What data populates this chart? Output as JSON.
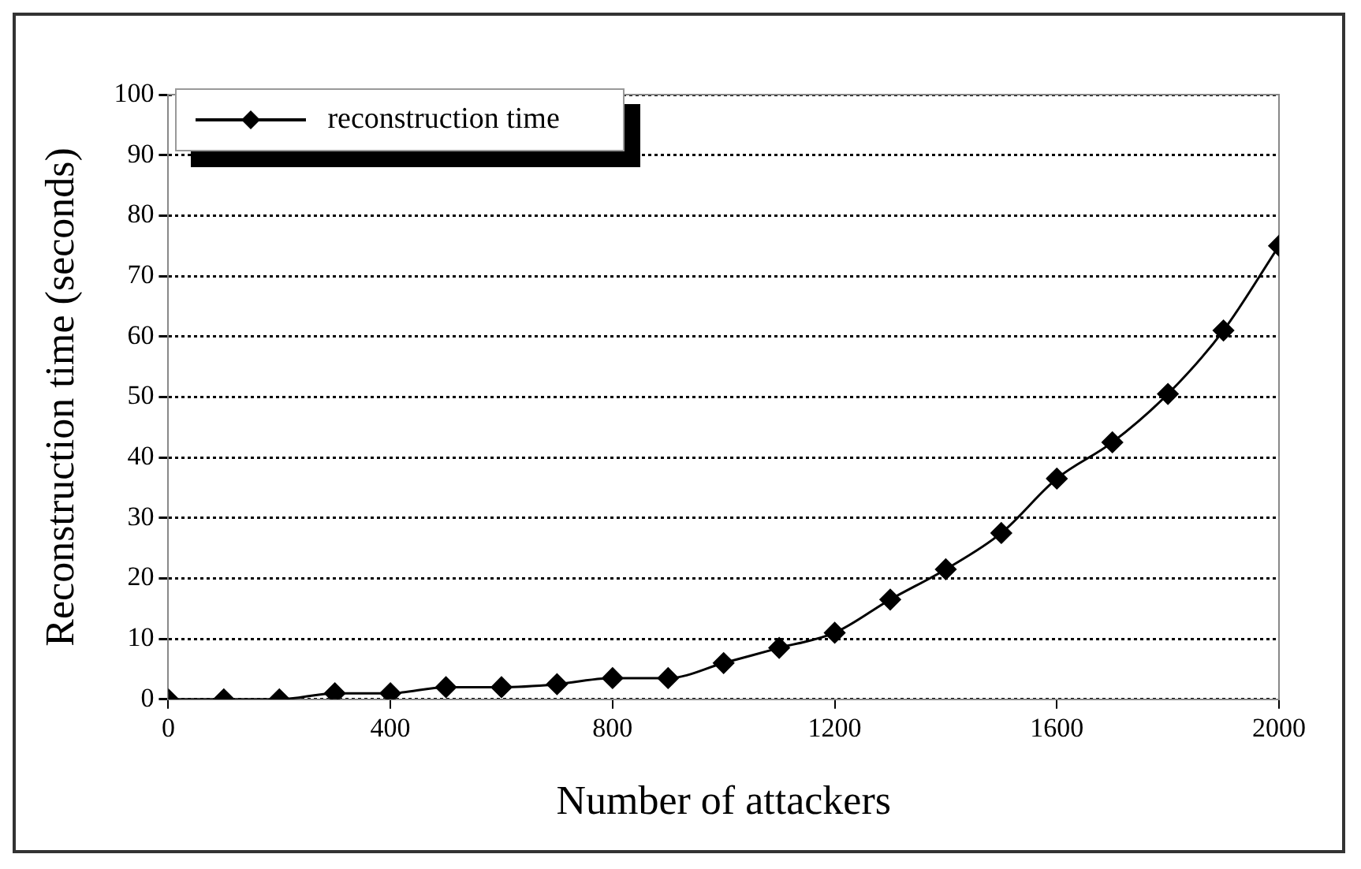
{
  "chart_data": {
    "type": "line",
    "xlabel": "Number of attackers",
    "ylabel": "Reconstruction time (seconds)",
    "x": [
      0,
      100,
      200,
      300,
      400,
      500,
      600,
      700,
      800,
      900,
      1000,
      1100,
      1200,
      1300,
      1400,
      1500,
      1600,
      1700,
      1800,
      1900,
      2000
    ],
    "series": [
      {
        "name": "reconstruction time",
        "color": "#000000",
        "values": [
          0,
          0,
          0,
          1,
          1,
          2,
          2,
          2.5,
          3.5,
          3.5,
          6,
          8.5,
          11,
          16.5,
          21.5,
          27.5,
          36.5,
          42.5,
          50.5,
          61,
          75
        ]
      }
    ],
    "xlim": [
      0,
      2000
    ],
    "xticks": [
      0,
      400,
      800,
      1200,
      1600,
      2000
    ],
    "ylim": [
      0,
      100
    ],
    "yticks": [
      0,
      10,
      20,
      30,
      40,
      50,
      60,
      70,
      80,
      90,
      100
    ],
    "grid": "y",
    "legend": "top left",
    "marker": "diamond",
    "line_style": "solid"
  }
}
